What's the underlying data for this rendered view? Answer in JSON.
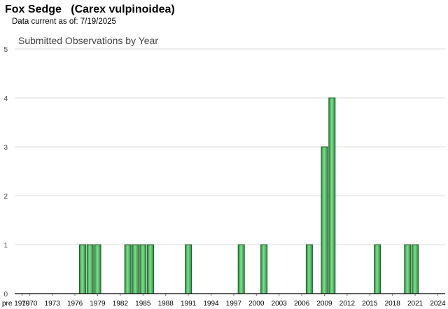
{
  "header": {
    "title": "Fox Sedge   (Carex vulpinoidea)",
    "subtitle": "Data current as of: 7/19/2025"
  },
  "colors": {
    "bar_fill": "#5ac86e",
    "bar_stroke": "#1f5a2a",
    "grid": "#dddddd",
    "axis": "#000000"
  },
  "chart_data": {
    "type": "bar",
    "title": "Submitted Observations by Year",
    "xlabel": "",
    "ylabel": "",
    "ylim": [
      0,
      5
    ],
    "yticks": [
      0,
      1,
      2,
      3,
      4,
      5
    ],
    "grid": true,
    "categories": [
      "pre 1970",
      "1970",
      "1971",
      "1972",
      "1973",
      "1974",
      "1975",
      "1976",
      "1977",
      "1978",
      "1979",
      "1980",
      "1981",
      "1982",
      "1983",
      "1984",
      "1985",
      "1986",
      "1987",
      "1988",
      "1989",
      "1990",
      "1991",
      "1992",
      "1993",
      "1994",
      "1995",
      "1996",
      "1997",
      "1998",
      "1999",
      "2000",
      "2001",
      "2002",
      "2003",
      "2004",
      "2005",
      "2006",
      "2007",
      "2008",
      "2009",
      "2010",
      "2011",
      "2012",
      "2013",
      "2014",
      "2015",
      "2016",
      "2017",
      "2018",
      "2019",
      "2020",
      "2021",
      "2022",
      "2023",
      "2024",
      "2025"
    ],
    "x_tick_labels": [
      "pre 1970",
      "1970",
      "1973",
      "1976",
      "1979",
      "1982",
      "1985",
      "1988",
      "1991",
      "1994",
      "1997",
      "2000",
      "2003",
      "2006",
      "2009",
      "2012",
      "2015",
      "2018",
      "2021",
      "2024"
    ],
    "values": {
      "1977": 1,
      "1978": 1,
      "1979": 1,
      "1983": 1,
      "1984": 1,
      "1985": 1,
      "1986": 1,
      "1991": 1,
      "1998": 1,
      "2001": 1,
      "2007": 1,
      "2009": 3,
      "2010": 4,
      "2016": 1,
      "2020": 1,
      "2021": 1
    }
  }
}
